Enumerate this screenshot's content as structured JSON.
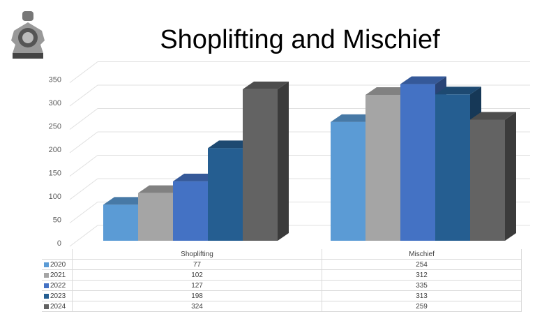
{
  "logo": {
    "name": "rcmp-crest-logo"
  },
  "chart_data": {
    "type": "bar",
    "title": "Shoplifting and Mischief",
    "categories": [
      "Shoplifting",
      "Mischief"
    ],
    "series": [
      {
        "name": "2020",
        "values": [
          77,
          254
        ],
        "color": "#5b9bd5"
      },
      {
        "name": "2021",
        "values": [
          102,
          312
        ],
        "color": "#a5a5a5"
      },
      {
        "name": "2022",
        "values": [
          127,
          335
        ],
        "color": "#4472c4"
      },
      {
        "name": "2023",
        "values": [
          198,
          313
        ],
        "color": "#255e91"
      },
      {
        "name": "2024",
        "values": [
          324,
          259
        ],
        "color": "#636363"
      }
    ],
    "yticks": [
      0,
      50,
      100,
      150,
      200,
      250,
      300,
      350
    ],
    "ylim": [
      0,
      350
    ],
    "grid": true,
    "three_d": true,
    "legend": "data-table"
  }
}
